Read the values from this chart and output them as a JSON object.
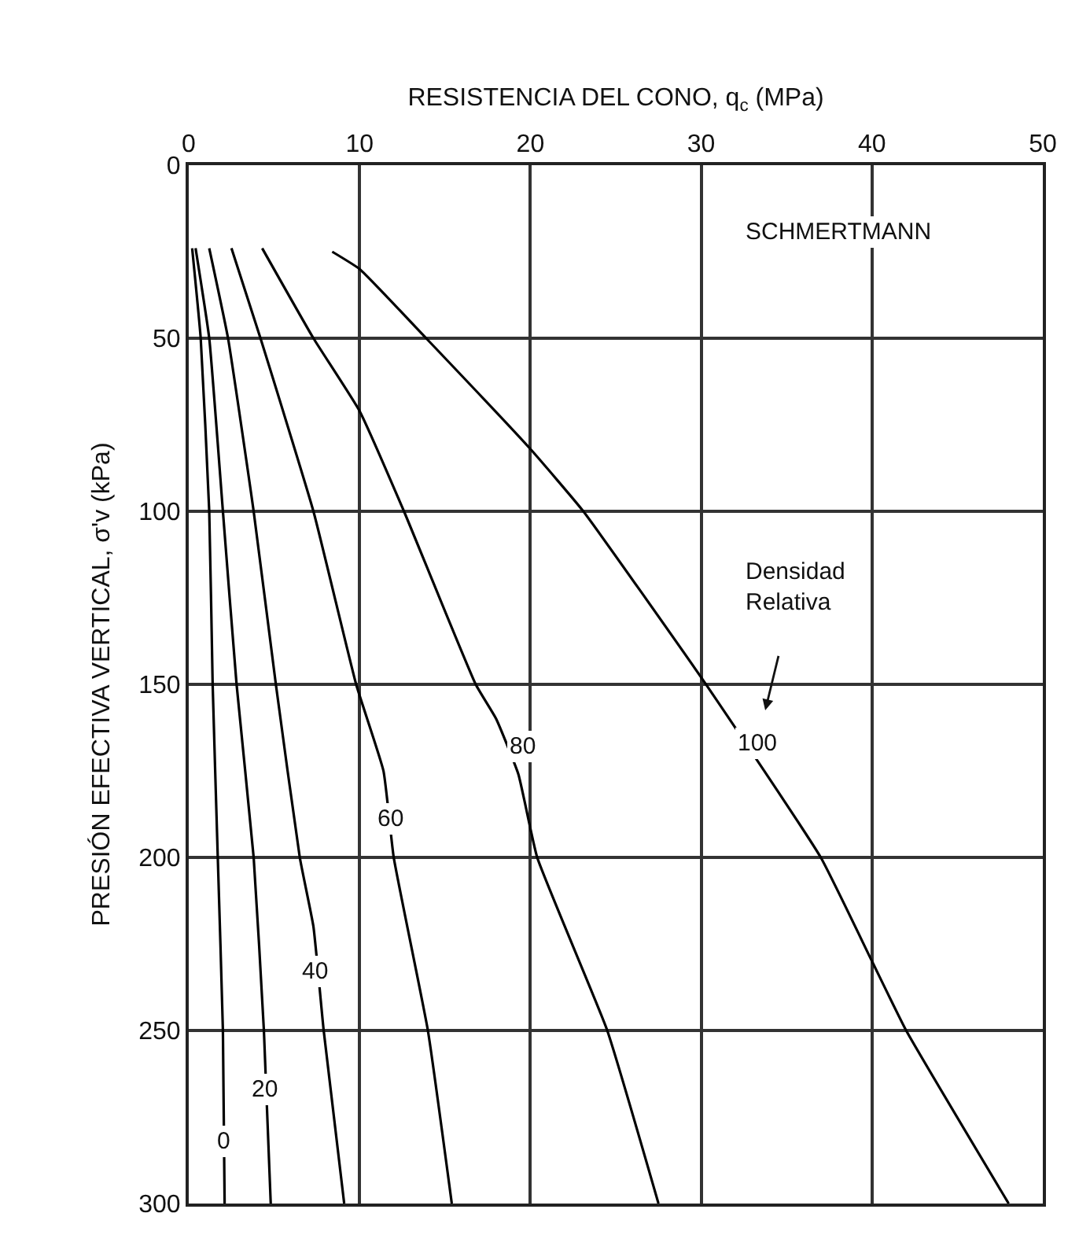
{
  "chart_data": {
    "type": "line",
    "xlabel": "RESISTENCIA DEL CONO, q$_{c}$ (MPa)",
    "ylabel": "PRESIÓN EFECTIVA VERTICAL, σ'v (kPa)",
    "xlim": [
      0,
      50
    ],
    "xticks": [
      0,
      10,
      20,
      30,
      40,
      50
    ],
    "ylim": [
      300,
      0
    ],
    "yticks": [
      0,
      50,
      100,
      150,
      200,
      250,
      300
    ],
    "grid": true,
    "marker": "none",
    "line_style": "solid",
    "series": [
      {
        "color": "#000000",
        "x": [
          0.2,
          0.7,
          1.2,
          1.4,
          1.7,
          2.0,
          2.1
        ],
        "values": [
          24,
          50,
          100,
          150,
          200,
          250,
          300
        ]
      },
      {
        "color": "#000000",
        "x": [
          0.4,
          1.2,
          2.0,
          2.8,
          3.8,
          4.4,
          4.8
        ],
        "values": [
          24,
          50,
          100,
          150,
          200,
          250,
          300
        ]
      },
      {
        "color": "#000000",
        "x": [
          1.2,
          2.3,
          3.8,
          5.1,
          6.5,
          7.3,
          7.9,
          9.1
        ],
        "values": [
          24,
          50,
          100,
          150,
          200,
          220,
          250,
          300
        ]
      },
      {
        "color": "#000000",
        "x": [
          2.5,
          4.2,
          7.3,
          9.8,
          11.4,
          12.0,
          14.0,
          15.4
        ],
        "values": [
          24,
          50,
          100,
          150,
          175,
          200,
          250,
          300
        ]
      },
      {
        "color": "#000000",
        "x": [
          4.3,
          7.3,
          10,
          12.6,
          16.8,
          18,
          19.3,
          20.4,
          24.5,
          27.5
        ],
        "values": [
          24,
          50,
          71,
          100,
          150,
          160,
          176,
          200,
          250,
          300
        ]
      },
      {
        "color": "#000000",
        "x": [
          8.4,
          10,
          13.9,
          20,
          23.1,
          30,
          37,
          40,
          42,
          48
        ],
        "values": [
          25,
          30,
          50,
          82,
          100,
          148,
          200,
          230,
          250,
          300
        ]
      }
    ],
    "annotations": [
      "SCHMERTMANN",
      "Densidad\nRelativa",
      {
        "text": "0",
        "x": 2.0,
        "y": 282
      },
      {
        "text": "20",
        "x": 4.5,
        "y": 267
      },
      {
        "text": "40",
        "x": 7.4,
        "y": 233
      },
      {
        "text": "60",
        "x": 11.8,
        "y": 189
      },
      {
        "text": "80",
        "x": 19.6,
        "y": 168
      },
      {
        "text": "100",
        "x": 33.3,
        "y": 167
      }
    ]
  }
}
